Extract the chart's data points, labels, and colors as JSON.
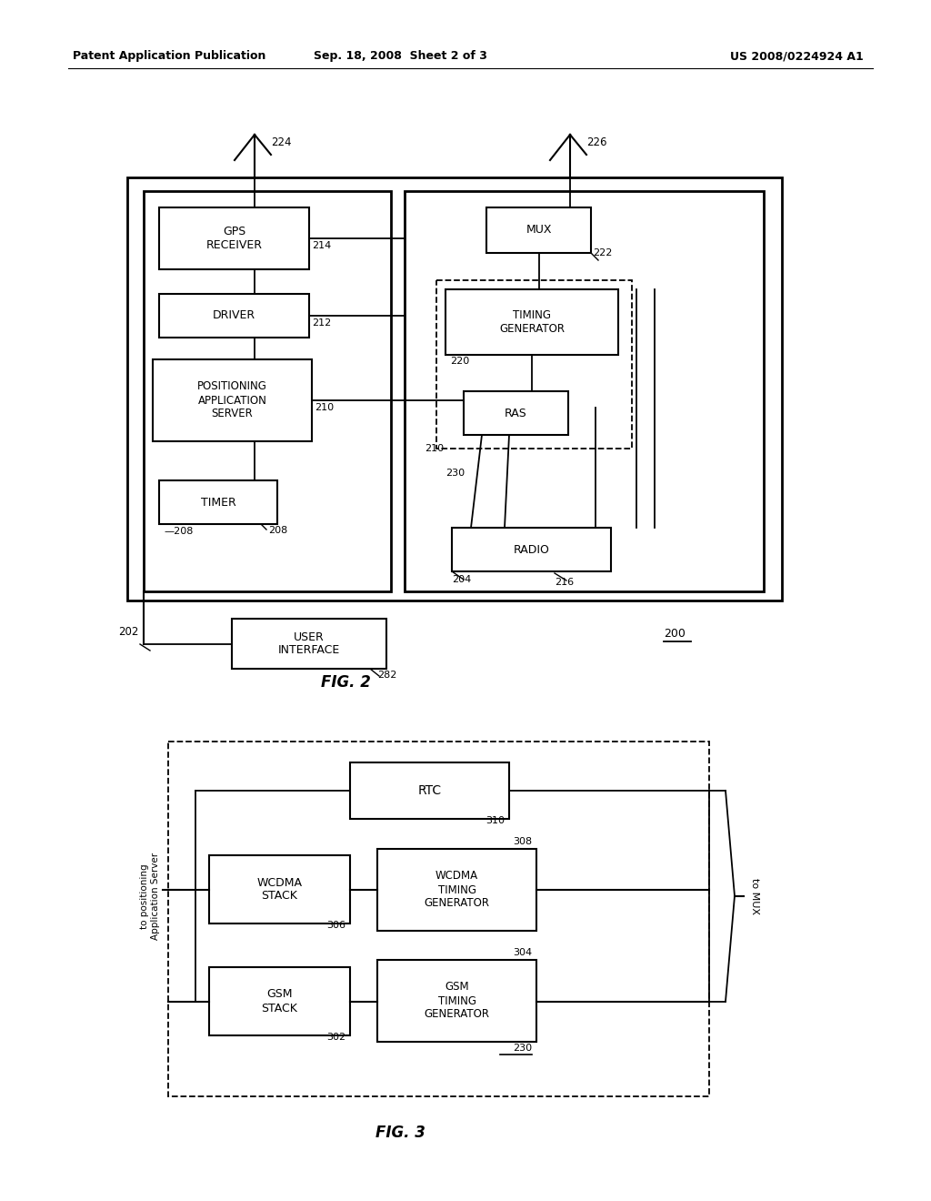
{
  "bg_color": "#ffffff",
  "header": {
    "left": "Patent Application Publication",
    "center": "Sep. 18, 2008  Sheet 2 of 3",
    "right": "US 2008/0224924 A1"
  }
}
